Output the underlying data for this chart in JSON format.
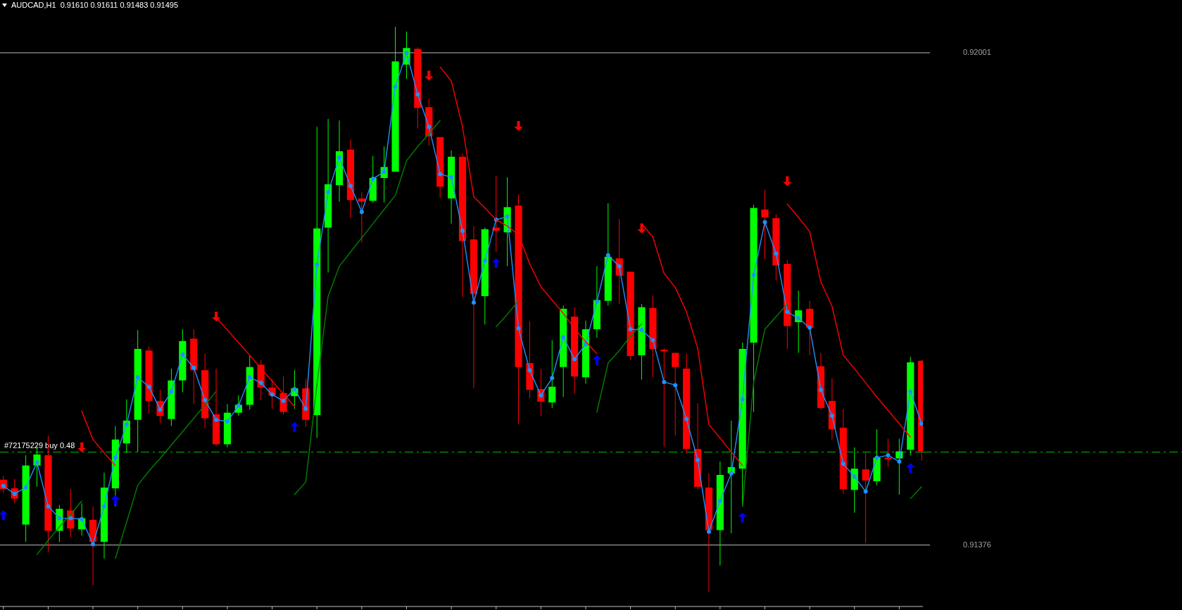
{
  "chart_data": {
    "type": "candlestick",
    "title": "AUDCAD,H1  0.91610 0.91611 0.91483 0.91495",
    "categories": [
      null,
      null,
      null,
      null,
      null,
      null,
      null,
      null,
      null,
      null,
      null,
      null,
      null,
      null,
      null,
      null,
      null,
      null,
      null,
      null,
      null,
      null,
      null,
      null,
      null,
      null,
      null,
      null,
      null,
      null,
      null,
      null,
      null,
      null,
      null,
      null,
      null,
      null,
      null,
      null,
      null,
      null,
      null,
      null,
      null,
      null,
      null,
      null,
      null,
      null,
      null,
      null,
      null,
      null,
      null,
      null,
      null,
      null,
      null,
      null,
      null,
      null,
      null,
      null,
      null,
      null,
      null,
      null,
      null,
      null,
      null,
      null,
      null,
      null,
      null,
      null,
      null,
      null,
      null,
      null,
      null,
      null,
      null
    ],
    "ohlc": [
      [
        0.91459,
        0.91464,
        0.91442,
        0.91447
      ],
      [
        0.91448,
        0.9146,
        0.91429,
        0.91435
      ],
      [
        0.91402,
        0.9149,
        0.9138,
        0.91477
      ],
      [
        0.91477,
        0.91501,
        0.9145,
        0.91491
      ],
      [
        0.9149,
        0.91515,
        0.91367,
        0.91394
      ],
      [
        0.91394,
        0.91427,
        0.9138,
        0.91422
      ],
      [
        0.9142,
        0.91447,
        0.91386,
        0.91397
      ],
      [
        0.91396,
        0.91429,
        0.91388,
        0.9141
      ],
      [
        0.91408,
        0.91425,
        0.91325,
        0.9138
      ],
      [
        0.9138,
        0.91468,
        0.91359,
        0.91449
      ],
      [
        0.91448,
        0.91527,
        0.91425,
        0.9151
      ],
      [
        0.91505,
        0.91561,
        0.91493,
        0.91534
      ],
      [
        0.91535,
        0.91649,
        0.91494,
        0.91625
      ],
      [
        0.91623,
        0.91628,
        0.91543,
        0.91559
      ],
      [
        0.91559,
        0.91573,
        0.91531,
        0.9154
      ],
      [
        0.91536,
        0.916,
        0.91527,
        0.91585
      ],
      [
        0.91585,
        0.9165,
        0.9157,
        0.91635
      ],
      [
        0.91638,
        0.9165,
        0.91555,
        0.91598
      ],
      [
        0.91598,
        0.91619,
        0.91524,
        0.91537
      ],
      [
        0.91542,
        0.916,
        0.91502,
        0.91504
      ],
      [
        0.91504,
        0.91555,
        0.915,
        0.91544
      ],
      [
        0.91544,
        0.91566,
        0.9154,
        0.91554
      ],
      [
        0.91554,
        0.91616,
        0.91548,
        0.91602
      ],
      [
        0.91605,
        0.91611,
        0.9156,
        0.91576
      ],
      [
        0.91576,
        0.91587,
        0.91549,
        0.91566
      ],
      [
        0.91569,
        0.9159,
        0.91542,
        0.91545
      ],
      [
        0.91565,
        0.91598,
        0.91549,
        0.91575
      ],
      [
        0.91575,
        0.91587,
        0.91526,
        0.91535
      ],
      [
        0.91541,
        0.91907,
        0.91512,
        0.91778
      ],
      [
        0.91779,
        0.91917,
        0.91722,
        0.91834
      ],
      [
        0.91833,
        0.91915,
        0.91812,
        0.91876
      ],
      [
        0.91878,
        0.91891,
        0.91791,
        0.91814
      ],
      [
        0.91816,
        0.91824,
        0.9176,
        0.91812
      ],
      [
        0.91813,
        0.9187,
        0.91811,
        0.91842
      ],
      [
        0.91842,
        0.91882,
        0.91811,
        0.91856
      ],
      [
        0.9185,
        0.92034,
        0.9185,
        0.9199
      ],
      [
        0.91986,
        0.92028,
        0.91968,
        0.92007
      ],
      [
        0.92006,
        0.92008,
        0.91905,
        0.91931
      ],
      [
        0.91932,
        0.91943,
        0.91883,
        0.91895
      ],
      [
        0.91894,
        0.91894,
        0.91817,
        0.91831
      ],
      [
        0.91816,
        0.91877,
        0.91784,
        0.91869
      ],
      [
        0.91869,
        0.91873,
        0.91691,
        0.91762
      ],
      [
        0.91764,
        0.91781,
        0.91575,
        0.91695
      ],
      [
        0.91692,
        0.91779,
        0.91656,
        0.91777
      ],
      [
        0.91779,
        0.91845,
        0.91748,
        0.91775
      ],
      [
        0.91773,
        0.91843,
        0.9173,
        0.91805
      ],
      [
        0.91807,
        0.91821,
        0.9153,
        0.91602
      ],
      [
        0.91607,
        0.9166,
        0.91562,
        0.91573
      ],
      [
        0.91574,
        0.916,
        0.9154,
        0.91558
      ],
      [
        0.91557,
        0.91636,
        0.9155,
        0.91577
      ],
      [
        0.91602,
        0.9168,
        0.91564,
        0.91676
      ],
      [
        0.91666,
        0.91678,
        0.91568,
        0.9159
      ],
      [
        0.91589,
        0.91661,
        0.91581,
        0.9165
      ],
      [
        0.9165,
        0.9173,
        0.91639,
        0.91687
      ],
      [
        0.91686,
        0.9181,
        0.9168,
        0.91742
      ],
      [
        0.9174,
        0.9179,
        0.91682,
        0.91718
      ],
      [
        0.91723,
        0.91723,
        0.91611,
        0.91616
      ],
      [
        0.91617,
        0.91682,
        0.91586,
        0.91678
      ],
      [
        0.91677,
        0.91693,
        0.91589,
        0.91625
      ],
      [
        0.91624,
        0.91626,
        0.91501,
        0.91622
      ],
      [
        0.9162,
        0.9162,
        0.91515,
        0.91602
      ],
      [
        0.916,
        0.91619,
        0.91492,
        0.91498
      ],
      [
        0.91498,
        0.91556,
        0.91447,
        0.9145
      ],
      [
        0.91449,
        0.91467,
        0.91316,
        0.91395
      ],
      [
        0.91395,
        0.91482,
        0.9135,
        0.91465
      ],
      [
        0.91467,
        0.91534,
        0.91391,
        0.91475
      ],
      [
        0.91473,
        0.91633,
        0.91425,
        0.91625
      ],
      [
        0.91633,
        0.91808,
        0.91545,
        0.91804
      ],
      [
        0.91802,
        0.91827,
        0.91739,
        0.91792
      ],
      [
        0.91791,
        0.91796,
        0.91712,
        0.91731
      ],
      [
        0.91733,
        0.91738,
        0.91625,
        0.91654
      ],
      [
        0.91659,
        0.91699,
        0.9162,
        0.91674
      ],
      [
        0.91676,
        0.91686,
        0.91617,
        0.91652
      ],
      [
        0.91603,
        0.9162,
        0.91548,
        0.9155
      ],
      [
        0.91559,
        0.91588,
        0.9151,
        0.91523
      ],
      [
        0.91525,
        0.91549,
        0.91441,
        0.91447
      ],
      [
        0.91446,
        0.915,
        0.91417,
        0.91473
      ],
      [
        0.91472,
        0.91495,
        0.91379,
        0.91458
      ],
      [
        0.91457,
        0.91523,
        0.91452,
        0.91487
      ],
      [
        0.91487,
        0.91511,
        0.91475,
        0.91485
      ],
      [
        0.91486,
        0.91511,
        0.9144,
        0.91495
      ],
      [
        0.91497,
        0.91615,
        0.9149,
        0.91608
      ],
      [
        0.9161,
        0.91611,
        0.91483,
        0.91495
      ]
    ],
    "colors": [
      "#ff0000",
      "#ff0000",
      "#00ff00",
      "#00ff00",
      "#ff0000",
      "#00ff00",
      "#ff0000",
      "#00ff00",
      "#ff0000",
      "#00ff00",
      "#00ff00",
      "#00ff00",
      "#00ff00",
      "#ff0000",
      "#ff0000",
      "#00ff00",
      "#00ff00",
      "#ff0000",
      "#ff0000",
      "#ff0000",
      "#00ff00",
      "#00ff00",
      "#00ff00",
      "#ff0000",
      "#ff0000",
      "#ff0000",
      "#00ff00",
      "#ff0000",
      "#00ff00",
      "#00ff00",
      "#00ff00",
      "#ff0000",
      "#ff0000",
      "#00ff00",
      "#00ff00",
      "#00ff00",
      "#00ff00",
      "#ff0000",
      "#ff0000",
      "#ff0000",
      "#00ff00",
      "#ff0000",
      "#ff0000",
      "#00ff00",
      "#ff0000",
      "#00ff00",
      "#ff0000",
      "#ff0000",
      "#ff0000",
      "#00ff00",
      "#00ff00",
      "#ff0000",
      "#00ff00",
      "#00ff00",
      "#00ff00",
      "#ff0000",
      "#ff0000",
      "#00ff00",
      "#ff0000",
      "#ff0000",
      "#ff0000",
      "#ff0000",
      "#ff0000",
      "#ff0000",
      "#00ff00",
      "#00ff00",
      "#00ff00",
      "#00ff00",
      "#ff0000",
      "#ff0000",
      "#ff0000",
      "#00ff00",
      "#ff0000",
      "#ff0000",
      "#ff0000",
      "#ff0000",
      "#00ff00",
      "#ff0000",
      "#00ff00",
      "#ff0000",
      "#00ff00",
      "#00ff00",
      "#ff0000"
    ],
    "series": [
      {
        "type": "line",
        "color": "#1e90ff",
        "marker": "circle",
        "values": [
          0.91451,
          0.91441,
          0.91449,
          0.91481,
          0.91425,
          0.9141,
          0.9141,
          0.91409,
          0.91377,
          0.91425,
          0.91487,
          0.91529,
          0.91589,
          0.91577,
          0.91548,
          0.91571,
          0.91618,
          0.91601,
          0.9156,
          0.91535,
          0.91533,
          0.91553,
          0.91589,
          0.91582,
          0.91567,
          0.91559,
          0.91574,
          0.91549,
          0.91732,
          0.91824,
          0.91868,
          0.91832,
          0.91799,
          0.91841,
          0.9185,
          0.91958,
          0.92001,
          0.91948,
          0.91907,
          0.91847,
          0.91843,
          0.91775,
          0.91684,
          0.91737,
          0.91789,
          0.91793,
          0.91651,
          0.91598,
          0.91566,
          0.91588,
          0.9164,
          0.91612,
          0.91631,
          0.91685,
          0.91744,
          0.9173,
          0.9165,
          0.91649,
          0.91636,
          0.91583,
          0.91579,
          0.91536,
          0.91484,
          0.91393,
          0.91432,
          0.91467,
          0.91561,
          0.91719,
          0.91786,
          0.91746,
          0.91672,
          0.91664,
          0.91652,
          0.91573,
          0.9154,
          0.91479,
          0.91463,
          0.91444,
          0.91487,
          0.9149,
          0.91482,
          0.91571,
          0.9153
        ]
      },
      {
        "type": "line",
        "color": "#008000",
        "values": [
          null,
          null,
          null,
          0.91364,
          0.91382,
          0.91399,
          0.91415,
          0.91432,
          null,
          null,
          0.91359,
          0.91405,
          0.91452,
          0.9147,
          0.91486,
          0.91503,
          0.9152,
          0.91537,
          0.91554,
          0.91571,
          null,
          null,
          null,
          null,
          null,
          null,
          0.9144,
          0.91456,
          0.9158,
          0.91692,
          0.9173,
          0.91748,
          0.91766,
          0.91784,
          0.91802,
          0.9182,
          0.91864,
          0.91882,
          0.91898,
          0.91915,
          null,
          null,
          null,
          null,
          0.91653,
          0.91669,
          0.91686,
          null,
          null,
          null,
          null,
          null,
          null,
          0.91545,
          0.91607,
          0.91623,
          0.91641,
          0.91657,
          null,
          null,
          null,
          null,
          null,
          null,
          null,
          null,
          0.91425,
          0.91583,
          0.9165,
          0.91666,
          0.91682,
          null,
          null,
          null,
          null,
          null,
          null,
          null,
          null,
          null,
          null,
          0.91435,
          0.9145
        ]
      },
      {
        "type": "line",
        "color": "#ff0000",
        "values": [
          null,
          null,
          null,
          null,
          null,
          null,
          null,
          0.91546,
          0.9151,
          0.91493,
          0.91477,
          null,
          null,
          null,
          null,
          null,
          null,
          null,
          null,
          0.91665,
          0.91649,
          0.91633,
          0.91617,
          0.916,
          0.91584,
          0.91568,
          0.91552,
          null,
          null,
          null,
          null,
          null,
          null,
          null,
          null,
          null,
          null,
          null,
          null,
          0.91983,
          0.91965,
          0.91907,
          0.91818,
          0.91804,
          0.91789,
          0.91781,
          0.9177,
          0.91733,
          0.91704,
          0.91687,
          0.9167,
          0.91651,
          0.91634,
          0.91619,
          null,
          null,
          null,
          0.91784,
          0.91767,
          0.91721,
          0.91703,
          0.91672,
          0.91626,
          0.91529,
          0.91512,
          0.91494,
          0.91477,
          null,
          null,
          null,
          0.91809,
          0.91792,
          0.91774,
          0.9171,
          0.91679,
          0.91617,
          0.916,
          0.91582,
          0.91564,
          0.91547,
          0.9153,
          0.91513,
          null
        ]
      },
      {
        "type": "scatter",
        "color": "#ff0000",
        "marker": "triangle",
        "values": [
          null,
          null,
          null,
          null,
          null,
          null,
          null,
          0.915,
          null,
          null,
          null,
          null,
          null,
          null,
          null,
          null,
          null,
          null,
          null,
          0.91666,
          null,
          null,
          null,
          null,
          null,
          null,
          null,
          null,
          null,
          null,
          null,
          null,
          null,
          null,
          null,
          null,
          null,
          null,
          0.91972,
          null,
          null,
          null,
          null,
          null,
          null,
          null,
          0.91908,
          null,
          null,
          null,
          null,
          null,
          null,
          null,
          null,
          null,
          null,
          0.91778,
          null,
          null,
          null,
          null,
          null,
          null,
          null,
          null,
          null,
          null,
          null,
          null,
          0.91838,
          null,
          null,
          null,
          null,
          null,
          null,
          null,
          null,
          null,
          null,
          null,
          null
        ]
      },
      {
        "type": "scatter",
        "color": "#0000ff",
        "marker": "triangle",
        "values": [
          0.91414,
          null,
          null,
          null,
          null,
          null,
          null,
          null,
          null,
          null,
          0.91433,
          null,
          null,
          null,
          null,
          null,
          null,
          null,
          null,
          null,
          null,
          null,
          null,
          null,
          null,
          null,
          0.91526,
          null,
          null,
          null,
          null,
          null,
          null,
          null,
          null,
          null,
          null,
          null,
          null,
          null,
          null,
          null,
          null,
          null,
          0.91734,
          null,
          null,
          null,
          null,
          null,
          null,
          null,
          null,
          0.91611,
          null,
          null,
          null,
          null,
          null,
          null,
          null,
          null,
          null,
          null,
          null,
          null,
          0.91411,
          null,
          null,
          null,
          null,
          null,
          null,
          null,
          null,
          null,
          null,
          null,
          null,
          null,
          null,
          0.91474,
          null
        ]
      }
    ],
    "ylim": [
      0.91298,
      0.92068
    ],
    "yticks": [
      0.92001,
      0.91376
    ],
    "tick_labels": "y",
    "ref_lines": [
      {
        "axis": "y",
        "value": 0.92001,
        "color": "#c0c0c0",
        "line_style": "solid"
      },
      {
        "axis": "y",
        "value": 0.91376,
        "color": "#c0c0c0",
        "line_style": "solid"
      },
      {
        "axis": "y",
        "value": 0.91494,
        "label": "#72175229 buy 0.48",
        "color": "#00c000",
        "line_style": "dashed"
      }
    ]
  }
}
